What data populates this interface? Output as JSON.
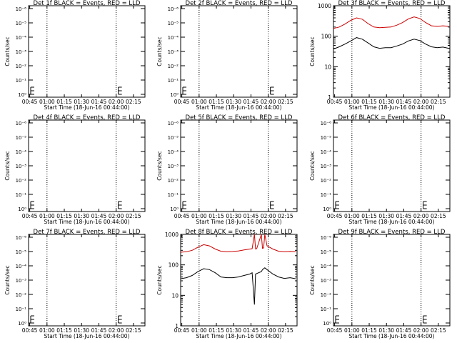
{
  "xlabel": "Start Time (18-Jun-16 00:44:00)",
  "ylabel": "Counts/sec",
  "x_ticks": [
    "00:45",
    "01:00",
    "01:15",
    "01:30",
    "01:45",
    "02:00",
    "02:15"
  ],
  "x_range_minutes": [
    0,
    101
  ],
  "dotted_marker_minutes": [
    16,
    76
  ],
  "log_ticks_small": [
    "10⁰",
    "10⁻¹",
    "10⁻²",
    "10⁻³",
    "10⁻⁴",
    "10⁻⁵",
    "10⁻⁶"
  ],
  "log_ticks_large": [
    "1",
    "10",
    "100",
    "1000"
  ],
  "colors": {
    "events": "#000000",
    "lld": "#cc0000"
  },
  "chart_data": [
    {
      "type": "line",
      "title": "Det 1f BLACK = Events, RED = LLD",
      "scale": "small",
      "lld_series": [],
      "events_series": []
    },
    {
      "type": "line",
      "title": "Det 2f BLACK = Events, RED = LLD",
      "scale": "small",
      "lld_series": [],
      "events_series": []
    },
    {
      "type": "line",
      "title": "Det 3f BLACK = Events, RED = LLD",
      "scale": "large",
      "ylim": [
        1,
        1000
      ],
      "x_minutes": [
        0,
        5,
        10,
        15,
        20,
        25,
        30,
        35,
        40,
        45,
        50,
        55,
        60,
        65,
        70,
        75,
        80,
        85,
        90,
        95,
        100
      ],
      "lld_series": [
        180,
        200,
        250,
        330,
        400,
        360,
        260,
        200,
        190,
        195,
        200,
        230,
        280,
        370,
        430,
        380,
        280,
        220,
        210,
        220,
        210
      ],
      "events_series": [
        38,
        45,
        55,
        70,
        90,
        80,
        60,
        45,
        40,
        42,
        42,
        48,
        55,
        70,
        80,
        72,
        55,
        45,
        42,
        44,
        40
      ]
    },
    {
      "type": "line",
      "title": "Det 4f BLACK = Events, RED = LLD",
      "scale": "small",
      "lld_series": [],
      "events_series": []
    },
    {
      "type": "line",
      "title": "Det 5f BLACK = Events, RED = LLD",
      "scale": "small",
      "lld_series": [],
      "events_series": []
    },
    {
      "type": "line",
      "title": "Det 6f BLACK = Events, RED = LLD",
      "scale": "small",
      "lld_series": [],
      "events_series": []
    },
    {
      "type": "line",
      "title": "Det 7f BLACK = Events, RED = LLD",
      "scale": "small",
      "lld_series": [],
      "events_series": []
    },
    {
      "type": "line",
      "title": "Det 8f BLACK = Events, RED = LLD",
      "scale": "large",
      "ylim": [
        1,
        1000
      ],
      "x_minutes": [
        0,
        5,
        10,
        15,
        20,
        25,
        30,
        35,
        40,
        45,
        50,
        55,
        60,
        62,
        64,
        65,
        66,
        70,
        71,
        72,
        73,
        75,
        80,
        85,
        90,
        95,
        100
      ],
      "lld_series": [
        260,
        270,
        300,
        380,
        460,
        420,
        330,
        280,
        270,
        275,
        285,
        310,
        330,
        340,
        1000,
        330,
        340,
        1000,
        350,
        360,
        1000,
        420,
        330,
        280,
        270,
        275,
        270
      ],
      "events_series": [
        35,
        38,
        45,
        60,
        75,
        70,
        55,
        40,
        38,
        38,
        40,
        45,
        50,
        55,
        5,
        50,
        52,
        60,
        70,
        75,
        80,
        70,
        50,
        40,
        36,
        38,
        35
      ]
    },
    {
      "type": "line",
      "title": "Det 9f BLACK = Events, RED = LLD",
      "scale": "small",
      "lld_series": [],
      "events_series": []
    }
  ]
}
